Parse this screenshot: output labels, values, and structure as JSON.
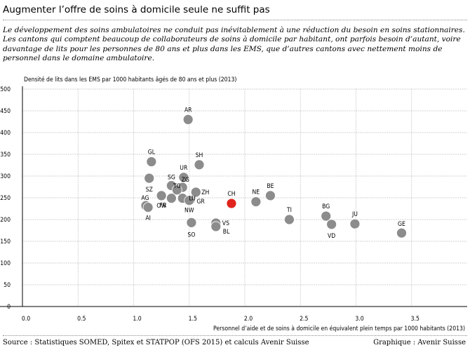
{
  "header": {
    "title": "Augmenter l’offre de soins à domicile seule ne suffit pas",
    "subtitle": "Le développement des soins ambulatoires ne conduit pas inévitablement à une réduction du besoin en soins stationnaires. Les cantons qui comptent beaucoup de collaborateurs de soins à domicile par habitant, ont parfois besoin d’autant, voire davantage de lits pour les personnes de 80 ans et plus dans les EMS, que d’autres cantons avec nettement moins de personnel dans le domaine ambulatoire."
  },
  "footer": {
    "source": "Source : Statistiques SOMED, Spitex et STATPOP (OFS 2015) et calculs Avenir Suisse",
    "credit": "Graphique : Avenir Suisse"
  },
  "colors": {
    "point": "#8c8c8c",
    "highlight": "#e0231c",
    "grid": "#9a9a9a",
    "axis": "#000000"
  },
  "chart_data": {
    "type": "scatter",
    "ylabel": "Densité de lits dans les EMS par 1000 habitants âgés de 80 ans et plus (2013)",
    "xlabel": "Personnel d’aide et de soins à domicile en équivalent plein temps par 1000 habitants (2013)",
    "xlim": [
      0,
      4
    ],
    "ylim": [
      0,
      500
    ],
    "xticks": [
      "0.0",
      "0.5",
      "1.0",
      "1.5",
      "2.0",
      "2.5",
      "3.0",
      "3.5"
    ],
    "yticks": [
      "0",
      "50",
      "100",
      "150",
      "200",
      "250",
      "300",
      "350",
      "400",
      "450",
      "500"
    ],
    "grid": true,
    "points": [
      {
        "label": "AR",
        "x": 1.49,
        "y": 430
      },
      {
        "label": "GL",
        "x": 1.16,
        "y": 333
      },
      {
        "label": "SH",
        "x": 1.59,
        "y": 326
      },
      {
        "label": "UR",
        "x": 1.45,
        "y": 297
      },
      {
        "label": "SZ",
        "x": 1.14,
        "y": 295
      },
      {
        "label": "SG",
        "x": 1.34,
        "y": 278
      },
      {
        "label": "ZG",
        "x": 1.44,
        "y": 274
      },
      {
        "label": "TG",
        "x": 1.39,
        "y": 268
      },
      {
        "label": "ZH",
        "x": 1.56,
        "y": 263
      },
      {
        "label": "NE",
        "x": 2.1,
        "y": 241
      },
      {
        "label": "BE",
        "x": 2.23,
        "y": 255
      },
      {
        "label": "OW",
        "x": 1.25,
        "y": 255
      },
      {
        "label": "FR",
        "x": 1.34,
        "y": 249
      },
      {
        "label": "LU",
        "x": 1.44,
        "y": 249
      },
      {
        "label": "GR",
        "x": 1.51,
        "y": 245
      },
      {
        "label": "NW",
        "x": 1.5,
        "y": 244
      },
      {
        "label": "CH",
        "x": 1.88,
        "y": 237,
        "highlight": true
      },
      {
        "label": "AG",
        "x": 1.11,
        "y": 232
      },
      {
        "label": "AI",
        "x": 1.13,
        "y": 228
      },
      {
        "label": "BG",
        "x": 2.73,
        "y": 208
      },
      {
        "label": "TI",
        "x": 2.4,
        "y": 200
      },
      {
        "label": "VS",
        "x": 1.74,
        "y": 192
      },
      {
        "label": "SO",
        "x": 1.52,
        "y": 193
      },
      {
        "label": "BL",
        "x": 1.74,
        "y": 184
      },
      {
        "label": "VD",
        "x": 2.78,
        "y": 189
      },
      {
        "label": "JU",
        "x": 2.99,
        "y": 190
      },
      {
        "label": "GE",
        "x": 3.41,
        "y": 169
      }
    ]
  }
}
